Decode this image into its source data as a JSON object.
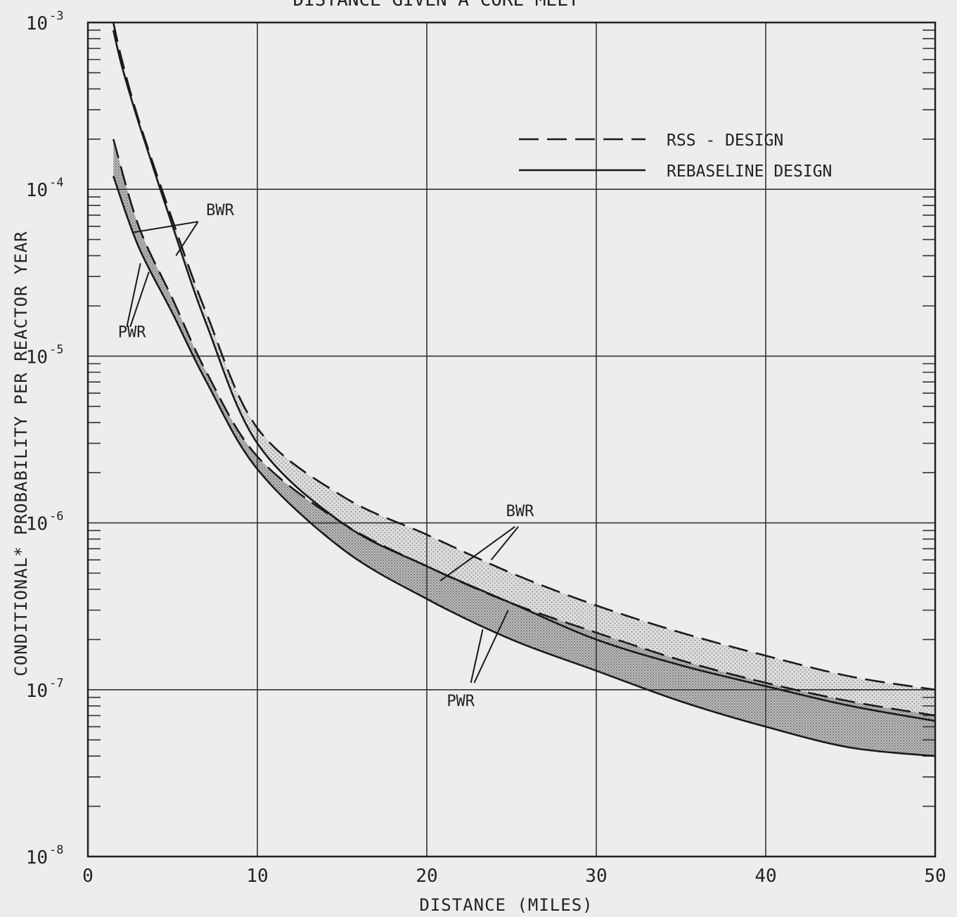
{
  "chart_data": {
    "type": "line",
    "title": "DISTANCE GIVEN A CORE MELT",
    "xlabel": "DISTANCE (MILES)",
    "ylabel": "CONDITIONAL* PROBABILITY PER REACTOR YEAR",
    "xlim": [
      0,
      50
    ],
    "ylim": [
      1e-08,
      0.001
    ],
    "yscale": "log",
    "grid": true,
    "x_ticks": [
      "0",
      "10",
      "20",
      "30",
      "40",
      "50"
    ],
    "y_ticks": [
      {
        "base": "10",
        "exp": "-3"
      },
      {
        "base": "10",
        "exp": "-4"
      },
      {
        "base": "10",
        "exp": "-5"
      },
      {
        "base": "10",
        "exp": "-6"
      },
      {
        "base": "10",
        "exp": "-7"
      },
      {
        "base": "10",
        "exp": "-8"
      }
    ],
    "legend": {
      "placement": "top-right",
      "entries": [
        {
          "label": "RSS - DESIGN",
          "style": "dashed"
        },
        {
          "label": "REBASELINE DESIGN",
          "style": "solid"
        }
      ]
    },
    "annotations": [
      {
        "text": "BWR",
        "x": 7.8,
        "y": 7e-05
      },
      {
        "text": "PWR",
        "x": 2.6,
        "y": 1.3e-05
      },
      {
        "text": "BWR",
        "x": 25.5,
        "y": 1.1e-06
      },
      {
        "text": "PWR",
        "x": 22.0,
        "y": 8e-08
      }
    ],
    "series": [
      {
        "name": "BWR",
        "style": "dashed",
        "x": [
          1.5,
          2,
          3,
          5,
          7,
          10,
          15,
          20,
          25,
          30,
          35,
          40,
          45,
          50
        ],
        "y": [
          0.001,
          0.0006,
          0.00026,
          6.5e-05,
          1.8e-05,
          3.7e-06,
          1.45e-06,
          8.5e-07,
          5e-07,
          3.2e-07,
          2.2e-07,
          1.6e-07,
          1.2e-07,
          1e-07
        ]
      },
      {
        "name": "BWR",
        "style": "solid",
        "x": [
          1.5,
          2,
          3,
          5,
          7,
          10,
          15,
          20,
          25,
          30,
          35,
          40,
          45,
          50
        ],
        "y": [
          0.0009,
          0.00055,
          0.00025,
          6e-05,
          1.55e-05,
          3e-06,
          1e-06,
          5.5e-07,
          3.3e-07,
          2e-07,
          1.4e-07,
          1.05e-07,
          8e-08,
          6.5e-08
        ]
      },
      {
        "name": "PWR",
        "style": "dashed",
        "x": [
          1.5,
          3,
          5,
          7,
          10,
          15,
          20,
          25,
          30,
          35,
          40,
          45,
          50
        ],
        "y": [
          0.0002,
          6e-05,
          2.2e-05,
          8e-06,
          2.5e-06,
          1e-06,
          5.5e-07,
          3.3e-07,
          2.2e-07,
          1.5e-07,
          1.1e-07,
          8.5e-08,
          7e-08
        ]
      },
      {
        "name": "PWR",
        "style": "solid",
        "x": [
          1.5,
          3,
          5,
          7,
          10,
          15,
          20,
          25,
          30,
          35,
          40,
          45,
          50
        ],
        "y": [
          0.00012,
          4.5e-05,
          1.8e-05,
          7e-06,
          2.1e-06,
          7e-07,
          3.5e-07,
          2e-07,
          1.3e-07,
          8.5e-08,
          6e-08,
          4.5e-08,
          4e-08
        ]
      }
    ]
  }
}
